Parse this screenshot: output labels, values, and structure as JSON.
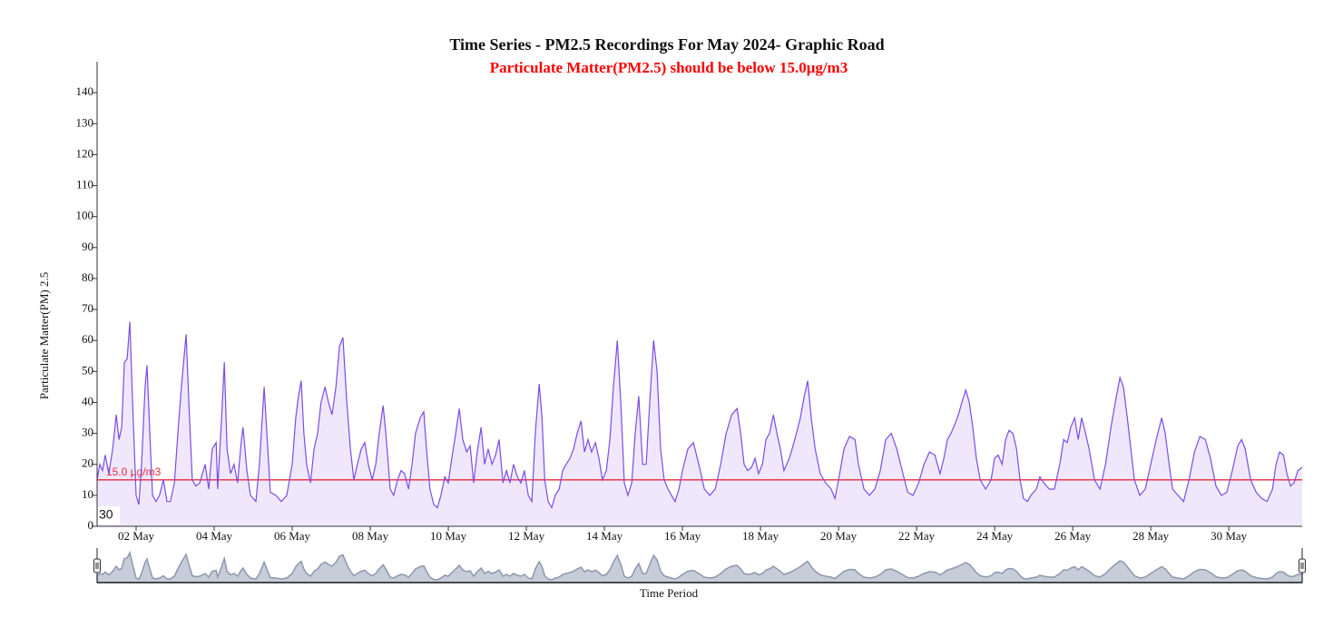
{
  "chart_data": {
    "type": "area-line",
    "title": "Time Series - PM2.5 Recordings For May 2024- Graphic Road",
    "subtitle": "Particulate Matter(PM2.5) should be below 15.0μg/m3",
    "y_label": "Particulate Matter(PM) 2.5",
    "x_label": "Time Period",
    "annotation": "30",
    "color": "#7b4ce6",
    "fill": "#efe8fd",
    "navigator_color": "#8e98ab",
    "threshold": {
      "value": 15,
      "label": "15.0 µg/m3",
      "color": "#e8283c"
    },
    "xlim": [
      1,
      31.88
    ],
    "ylim": [
      0,
      150
    ],
    "yticks": [
      0,
      10,
      20,
      30,
      40,
      50,
      60,
      70,
      80,
      90,
      100,
      110,
      120,
      130,
      140
    ],
    "xticks": [
      {
        "value": 2,
        "label": "02 May"
      },
      {
        "value": 4,
        "label": "04 May"
      },
      {
        "value": 6,
        "label": "06 May"
      },
      {
        "value": 8,
        "label": "08 May"
      },
      {
        "value": 10,
        "label": "10 May"
      },
      {
        "value": 12,
        "label": "12 May"
      },
      {
        "value": 14,
        "label": "14 May"
      },
      {
        "value": 16,
        "label": "16 May"
      },
      {
        "value": 18,
        "label": "18 May"
      },
      {
        "value": 20,
        "label": "20 May"
      },
      {
        "value": 22,
        "label": "22 May"
      },
      {
        "value": 24,
        "label": "24 May"
      },
      {
        "value": 26,
        "label": "26 May"
      },
      {
        "value": 28,
        "label": "28 May"
      },
      {
        "value": 30,
        "label": "30 May"
      }
    ],
    "x": [
      1.0,
      1.07,
      1.14,
      1.21,
      1.3,
      1.4,
      1.49,
      1.56,
      1.63,
      1.7,
      1.77,
      1.84,
      1.91,
      2.0,
      2.07,
      2.14,
      2.23,
      2.28,
      2.35,
      2.42,
      2.51,
      2.6,
      2.7,
      2.79,
      2.88,
      2.98,
      3.07,
      3.16,
      3.28,
      3.35,
      3.44,
      3.53,
      3.63,
      3.77,
      3.86,
      3.95,
      4.05,
      4.09,
      4.19,
      4.26,
      4.33,
      4.42,
      4.51,
      4.6,
      4.7,
      4.74,
      4.84,
      4.93,
      5.07,
      5.16,
      5.28,
      5.35,
      5.44,
      5.58,
      5.72,
      5.86,
      6.0,
      6.09,
      6.16,
      6.23,
      6.3,
      6.37,
      6.47,
      6.56,
      6.65,
      6.74,
      6.84,
      6.93,
      7.02,
      7.12,
      7.21,
      7.3,
      7.4,
      7.49,
      7.58,
      7.67,
      7.77,
      7.86,
      7.95,
      8.05,
      8.14,
      8.23,
      8.33,
      8.4,
      8.51,
      8.6,
      8.7,
      8.79,
      8.88,
      8.98,
      9.07,
      9.16,
      9.28,
      9.37,
      9.44,
      9.53,
      9.63,
      9.72,
      9.81,
      9.91,
      10.0,
      10.09,
      10.19,
      10.28,
      10.37,
      10.47,
      10.56,
      10.65,
      10.74,
      10.84,
      10.93,
      11.02,
      11.12,
      11.21,
      11.3,
      11.4,
      11.49,
      11.58,
      11.67,
      11.77,
      11.86,
      11.95,
      12.05,
      12.14,
      12.23,
      12.33,
      12.4,
      12.47,
      12.56,
      12.65,
      12.74,
      12.84,
      12.93,
      13.02,
      13.12,
      13.21,
      13.3,
      13.4,
      13.49,
      13.58,
      13.67,
      13.77,
      13.86,
      13.95,
      14.05,
      14.14,
      14.23,
      14.33,
      14.42,
      14.51,
      14.6,
      14.7,
      14.79,
      14.88,
      14.98,
      15.07,
      15.16,
      15.26,
      15.35,
      15.44,
      15.53,
      15.63,
      15.72,
      15.81,
      15.91,
      16.0,
      16.14,
      16.28,
      16.42,
      16.56,
      16.7,
      16.84,
      16.98,
      17.12,
      17.26,
      17.4,
      17.49,
      17.58,
      17.67,
      17.77,
      17.86,
      17.95,
      18.05,
      18.14,
      18.23,
      18.33,
      18.42,
      18.51,
      18.6,
      18.74,
      18.88,
      19.02,
      19.12,
      19.21,
      19.3,
      19.4,
      19.53,
      19.67,
      19.81,
      19.91,
      20.0,
      20.14,
      20.28,
      20.42,
      20.51,
      20.65,
      20.79,
      20.93,
      21.07,
      21.21,
      21.35,
      21.49,
      21.63,
      21.77,
      21.91,
      22.05,
      22.19,
      22.33,
      22.47,
      22.6,
      22.7,
      22.79,
      22.88,
      22.98,
      23.07,
      23.16,
      23.26,
      23.35,
      23.44,
      23.53,
      23.63,
      23.77,
      23.91,
      24.0,
      24.09,
      24.19,
      24.28,
      24.37,
      24.47,
      24.56,
      24.65,
      24.74,
      24.84,
      24.93,
      25.07,
      25.16,
      25.26,
      25.4,
      25.53,
      25.67,
      25.77,
      25.86,
      25.95,
      26.05,
      26.14,
      26.23,
      26.33,
      26.42,
      26.56,
      26.7,
      26.84,
      26.98,
      27.12,
      27.21,
      27.3,
      27.4,
      27.49,
      27.58,
      27.72,
      27.86,
      28.0,
      28.14,
      28.28,
      28.37,
      28.47,
      28.56,
      28.7,
      28.84,
      28.98,
      29.12,
      29.26,
      29.4,
      29.53,
      29.67,
      29.81,
      29.95,
      30.09,
      30.23,
      30.33,
      30.42,
      30.56,
      30.7,
      30.84,
      30.98,
      31.12,
      31.21,
      31.3,
      31.4,
      31.49,
      31.58,
      31.67,
      31.77,
      31.88
    ],
    "values": [
      15,
      20,
      18,
      23,
      17,
      25,
      36,
      28,
      32,
      53,
      54,
      66,
      40,
      10,
      7,
      20,
      45,
      52,
      30,
      10,
      8,
      10,
      15,
      8,
      8,
      14,
      30,
      45,
      62,
      40,
      15,
      13,
      14,
      20,
      12,
      25,
      27,
      12,
      35,
      53,
      25,
      17,
      20,
      14,
      28,
      32,
      18,
      10,
      8,
      20,
      45,
      30,
      11,
      10,
      8,
      10,
      20,
      35,
      42,
      47,
      30,
      20,
      14,
      25,
      30,
      40,
      45,
      40,
      36,
      45,
      58,
      61,
      40,
      25,
      15,
      20,
      25,
      27,
      20,
      15,
      20,
      30,
      39,
      30,
      12,
      10,
      15,
      18,
      17,
      12,
      20,
      30,
      35,
      37,
      25,
      12,
      7,
      6,
      10,
      16,
      14,
      22,
      30,
      38,
      28,
      24,
      26,
      14,
      24,
      32,
      20,
      25,
      20,
      23,
      28,
      14,
      18,
      14,
      20,
      16,
      14,
      18,
      10,
      8,
      30,
      46,
      35,
      15,
      8,
      6,
      10,
      12,
      18,
      20,
      22,
      25,
      30,
      34,
      24,
      28,
      24,
      27,
      22,
      15,
      18,
      28,
      45,
      60,
      40,
      14,
      10,
      14,
      30,
      42,
      20,
      20,
      40,
      60,
      50,
      25,
      15,
      12,
      10,
      8,
      12,
      18,
      25,
      27,
      20,
      12,
      10,
      12,
      20,
      30,
      36,
      38,
      30,
      20,
      18,
      19,
      22,
      17,
      20,
      28,
      30,
      36,
      30,
      25,
      18,
      22,
      28,
      35,
      42,
      47,
      35,
      25,
      17,
      14,
      12,
      9,
      15,
      25,
      29,
      28,
      20,
      12,
      10,
      12,
      18,
      28,
      30,
      25,
      18,
      11,
      10,
      14,
      20,
      24,
      23,
      17,
      22,
      28,
      30,
      33,
      36,
      40,
      44,
      40,
      32,
      22,
      15,
      12,
      15,
      22,
      23,
      20,
      28,
      31,
      30,
      25,
      15,
      9,
      8,
      10,
      12,
      16,
      14,
      12,
      12,
      20,
      28,
      27,
      32,
      35,
      28,
      35,
      30,
      25,
      15,
      12,
      20,
      32,
      42,
      48,
      45,
      35,
      25,
      15,
      10,
      12,
      20,
      28,
      35,
      30,
      20,
      12,
      10,
      8,
      15,
      24,
      29,
      28,
      22,
      13,
      10,
      11,
      18,
      26,
      28,
      25,
      15,
      11,
      9,
      8,
      12,
      20,
      24,
      23,
      17,
      13,
      14,
      18,
      19
    ]
  }
}
